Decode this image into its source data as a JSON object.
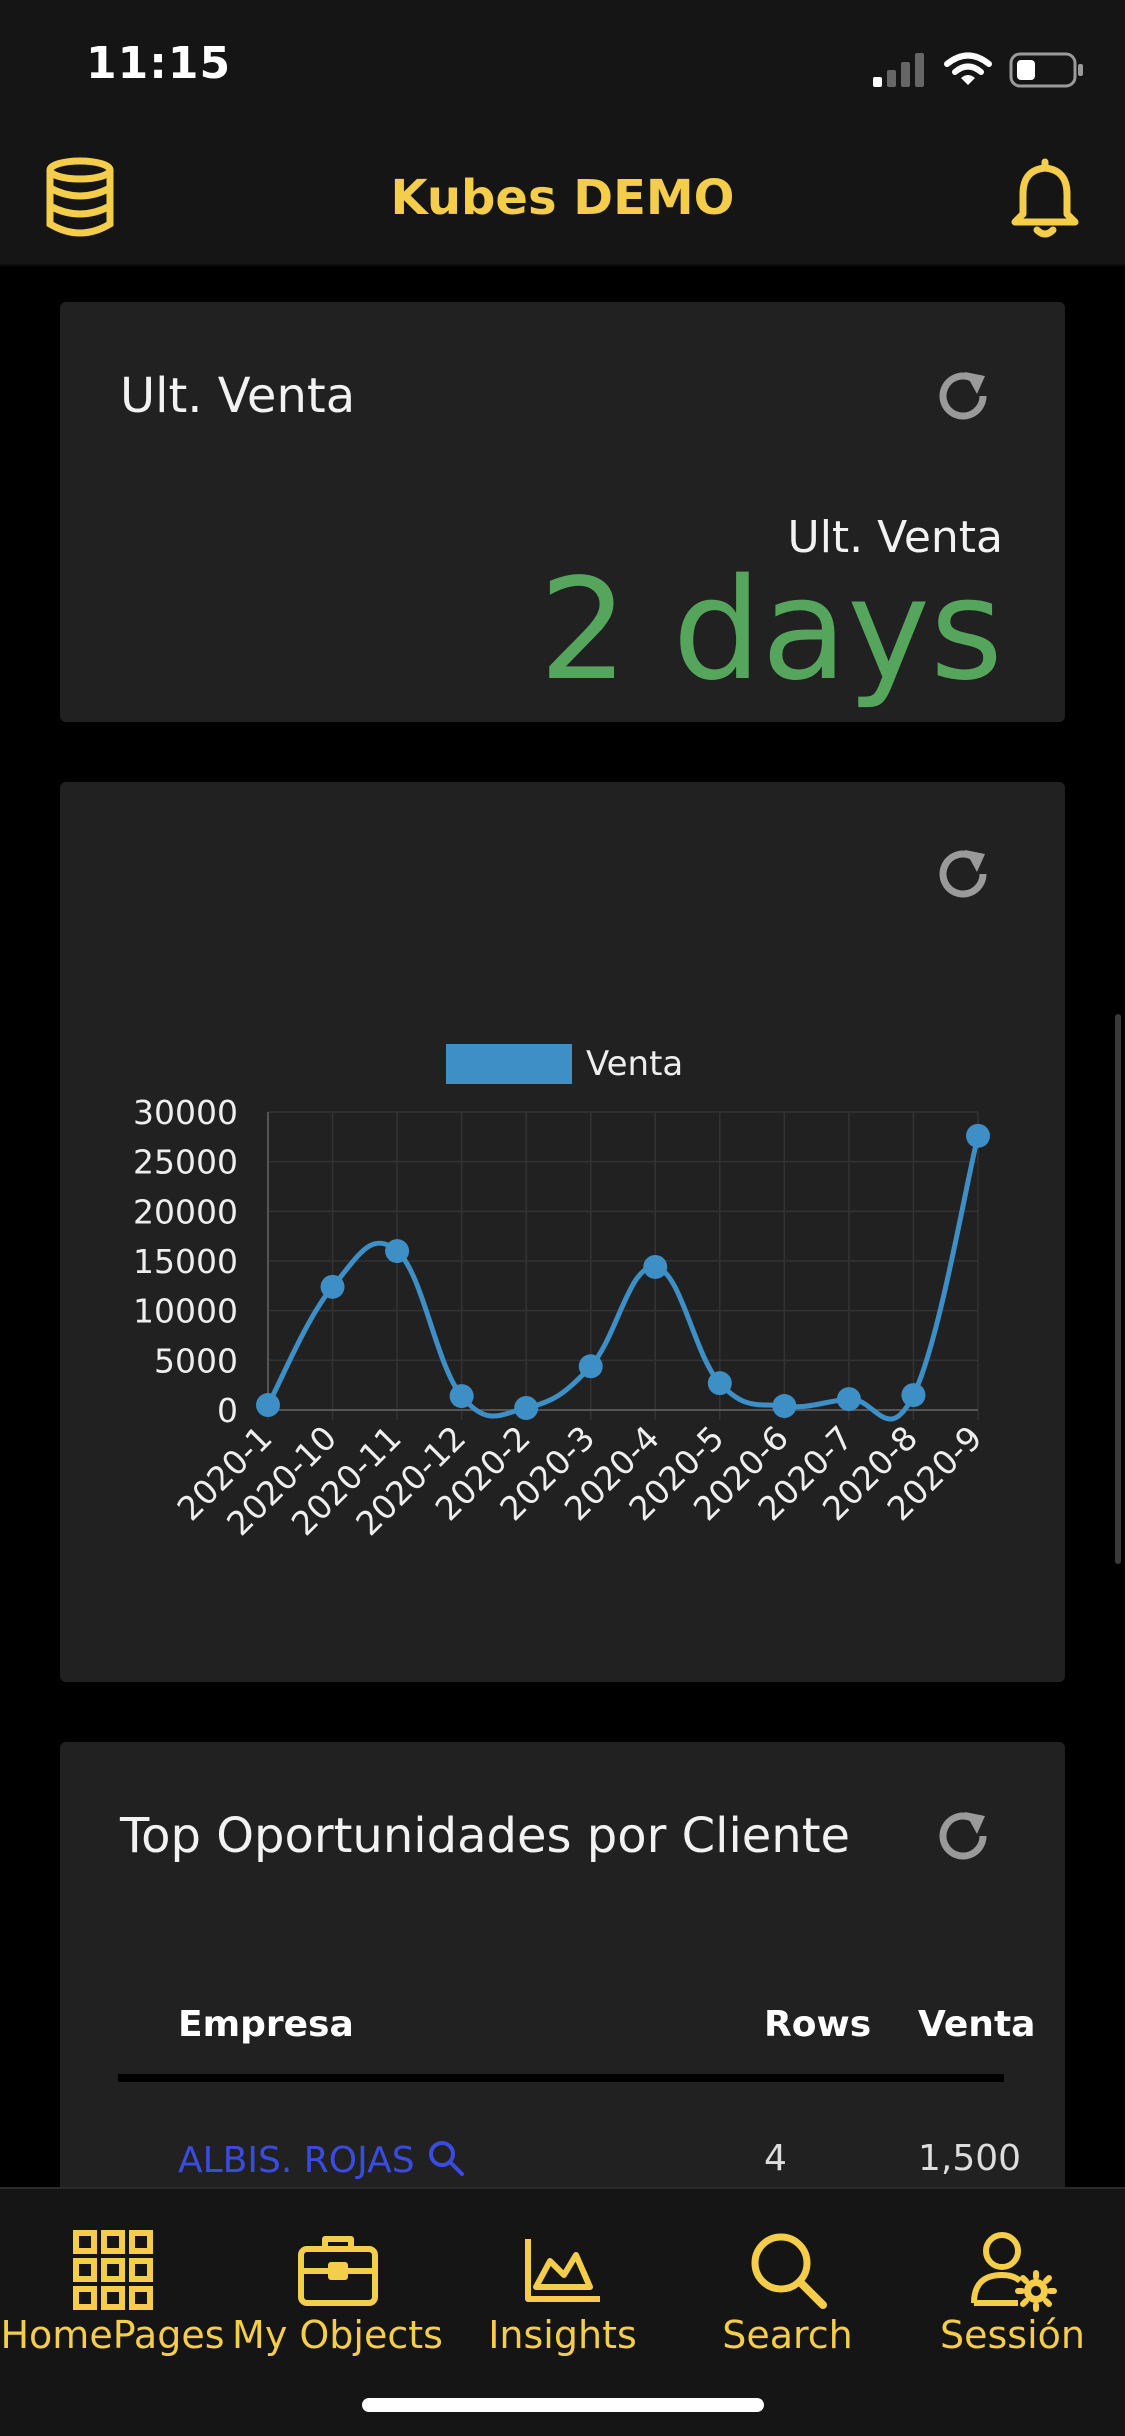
{
  "status_bar": {
    "time": "11:15"
  },
  "header": {
    "title": "Kubes DEMO",
    "left_icon": "database-icon",
    "right_icon": "bell-icon"
  },
  "colors": {
    "accent": "#f4cd4a",
    "kpi": "#55a65c",
    "chart_line": "#3d8fc6",
    "link": "#3a4be0",
    "card_bg": "#212121"
  },
  "kpi_card": {
    "title": "Ult. Venta",
    "subtitle": "Ult. Venta",
    "value": "2 days"
  },
  "chart_card": {
    "chart_data": {
      "type": "line",
      "title": "",
      "xlabel": "",
      "ylabel": "",
      "categories": [
        "2020-1",
        "2020-10",
        "2020-11",
        "2020-12",
        "2020-2",
        "2020-3",
        "2020-4",
        "2020-5",
        "2020-6",
        "2020-7",
        "2020-8",
        "2020-9"
      ],
      "series": [
        {
          "name": "Venta",
          "values": [
            500,
            12400,
            16000,
            1400,
            200,
            4400,
            14400,
            2700,
            400,
            1100,
            1500,
            27600
          ]
        }
      ],
      "ylim": [
        0,
        30000
      ],
      "yticks": [
        "0",
        "5000",
        "10000",
        "15000",
        "20000",
        "25000",
        "30000"
      ],
      "grid": true,
      "legend": "top-center"
    }
  },
  "table_card": {
    "title": "Top Oportunidades por Cliente",
    "columns": [
      "Empresa",
      "Rows",
      "Venta"
    ],
    "rows": [
      {
        "empresa": "ALBIS. ROJAS",
        "rows": "4",
        "venta": "1,500"
      }
    ]
  },
  "nav": [
    {
      "label": "HomePages",
      "icon": "grid-icon"
    },
    {
      "label": "My Objects",
      "icon": "briefcase-icon"
    },
    {
      "label": "Insights",
      "icon": "area-chart-icon"
    },
    {
      "label": "Search",
      "icon": "search-icon"
    },
    {
      "label": "Sessión",
      "icon": "user-gear-icon"
    }
  ]
}
